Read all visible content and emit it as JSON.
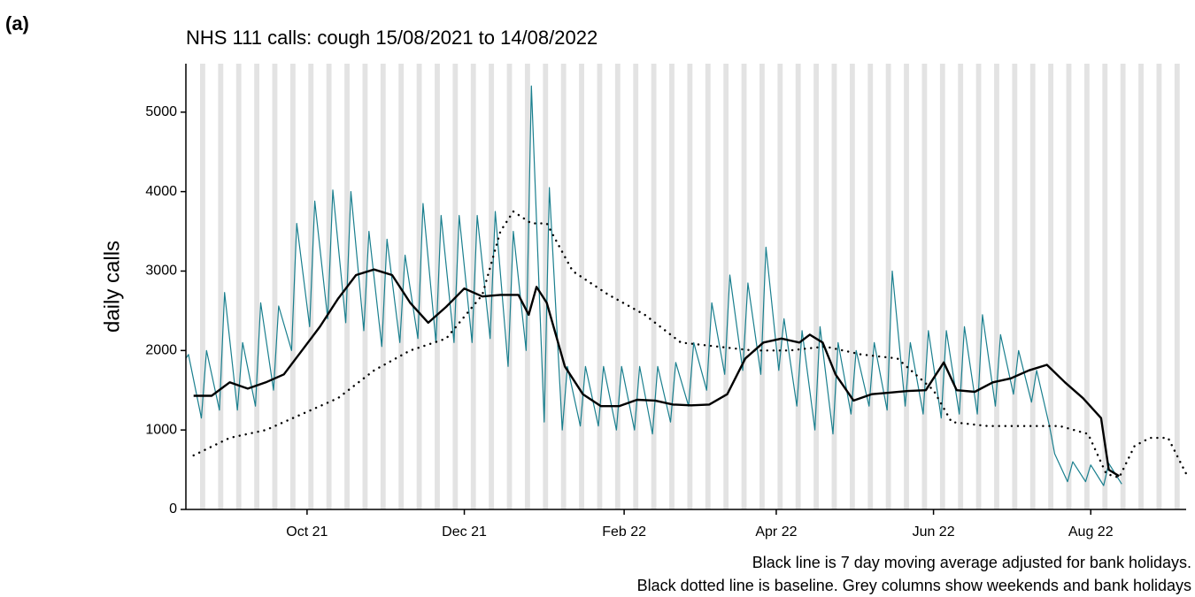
{
  "chart_data": {
    "type": "line",
    "panel_label": "(a)",
    "title": "NHS 111 calls: cough 15/08/2021 to 14/08/2022",
    "ylabel": "daily calls",
    "notes": [
      "Black line is 7 day moving average adjusted for bank holidays.",
      "Black dotted line is baseline. Grey columns show weekends and bank holidays"
    ],
    "xlim": [
      0,
      388
    ],
    "xticks": [
      {
        "value": 47,
        "label": "Oct 21"
      },
      {
        "value": 108,
        "label": "Dec 21"
      },
      {
        "value": 170,
        "label": "Feb 22"
      },
      {
        "value": 229,
        "label": "Apr 22"
      },
      {
        "value": 290,
        "label": "Jun 22"
      },
      {
        "value": 351,
        "label": "Aug 22"
      }
    ],
    "ylim": [
      0,
      5610
    ],
    "yticks": [
      0,
      1000,
      2000,
      3000,
      4000,
      5000
    ],
    "weekend_shading": true,
    "series": [
      {
        "color": "#1a7f8e",
        "style": "solid",
        "width": 1.2,
        "x": [
          0,
          1,
          6,
          8,
          13,
          15,
          20,
          22,
          27,
          29,
          34,
          36,
          41,
          43,
          48,
          50,
          55,
          57,
          62,
          64,
          69,
          71,
          76,
          78,
          83,
          85,
          90,
          92,
          97,
          99,
          104,
          106,
          111,
          113,
          118,
          120,
          125,
          127,
          132,
          134,
          139,
          141,
          146,
          148,
          153,
          155,
          160,
          162,
          167,
          169,
          174,
          176,
          181,
          183,
          188,
          190,
          195,
          197,
          202,
          204,
          209,
          211,
          216,
          218,
          223,
          225,
          230,
          232,
          237,
          239,
          244,
          246,
          251,
          253,
          258,
          260,
          265,
          267,
          272,
          274,
          279,
          281,
          286,
          288,
          293,
          295,
          300,
          302,
          307,
          309,
          314,
          316,
          321,
          323,
          328,
          330,
          335,
          337,
          342,
          344,
          349,
          351,
          356,
          358,
          363
        ],
        "values": [
          1900,
          1950,
          1150,
          2000,
          1250,
          2730,
          1250,
          2100,
          1300,
          2600,
          1500,
          2560,
          2000,
          3600,
          2300,
          3880,
          2400,
          4020,
          2350,
          4000,
          2250,
          3500,
          2050,
          3400,
          2100,
          3200,
          2150,
          3850,
          2100,
          3700,
          2100,
          3700,
          2100,
          3700,
          2150,
          3750,
          1800,
          3500,
          2000,
          5330,
          1100,
          4050,
          1000,
          1800,
          1050,
          1800,
          1050,
          1800,
          1000,
          1800,
          1000,
          1800,
          950,
          1800,
          1100,
          1850,
          1300,
          2100,
          1500,
          2600,
          1700,
          2950,
          1750,
          2850,
          1700,
          3300,
          1750,
          2400,
          1300,
          2250,
          1000,
          2300,
          950,
          2100,
          1200,
          2000,
          1300,
          2100,
          1250,
          3000,
          1300,
          2100,
          1200,
          2250,
          1150,
          2250,
          1200,
          2300,
          1200,
          2450,
          1300,
          2200,
          1450,
          2000,
          1350,
          1750,
          1050,
          700,
          350,
          600,
          350,
          560,
          300,
          580,
          320
        ]
      },
      {
        "color": "#000000",
        "style": "solid",
        "width": 2.4,
        "x": [
          3,
          10,
          17,
          24,
          31,
          38,
          45,
          52,
          59,
          66,
          73,
          80,
          87,
          94,
          101,
          108,
          115,
          122,
          129,
          133,
          136,
          140,
          147,
          154,
          161,
          168,
          175,
          182,
          189,
          196,
          203,
          210,
          217,
          224,
          231,
          238,
          242,
          247,
          252,
          259,
          266,
          273,
          280,
          287,
          294,
          299,
          306,
          313,
          320,
          327,
          334,
          341,
          348,
          355,
          358,
          362
        ],
        "values": [
          1430,
          1430,
          1600,
          1520,
          1600,
          1700,
          2000,
          2300,
          2650,
          2950,
          3020,
          2950,
          2600,
          2350,
          2550,
          2780,
          2680,
          2700,
          2700,
          2450,
          2800,
          2600,
          1800,
          1450,
          1300,
          1300,
          1380,
          1370,
          1320,
          1310,
          1320,
          1450,
          1900,
          2100,
          2150,
          2100,
          2200,
          2100,
          1700,
          1370,
          1450,
          1470,
          1490,
          1500,
          1850,
          1500,
          1480,
          1600,
          1650,
          1750,
          1820,
          1600,
          1400,
          1150,
          500,
          420
        ]
      },
      {
        "color": "#000000",
        "style": "dotted",
        "width": 2.4,
        "x": [
          3,
          17,
          31,
          45,
          59,
          73,
          87,
          101,
          115,
          122,
          127,
          134,
          140,
          150,
          164,
          178,
          192,
          206,
          220,
          234,
          248,
          262,
          276,
          290,
          297,
          311,
          325,
          339,
          350,
          357,
          362,
          368,
          374,
          381,
          388
        ],
        "values": [
          680,
          900,
          1000,
          1200,
          1400,
          1750,
          2000,
          2150,
          2700,
          3500,
          3750,
          3600,
          3600,
          3000,
          2700,
          2450,
          2100,
          2050,
          2000,
          2000,
          2050,
          1950,
          1900,
          1500,
          1100,
          1050,
          1050,
          1050,
          950,
          450,
          400,
          800,
          900,
          900,
          450
        ]
      }
    ]
  }
}
